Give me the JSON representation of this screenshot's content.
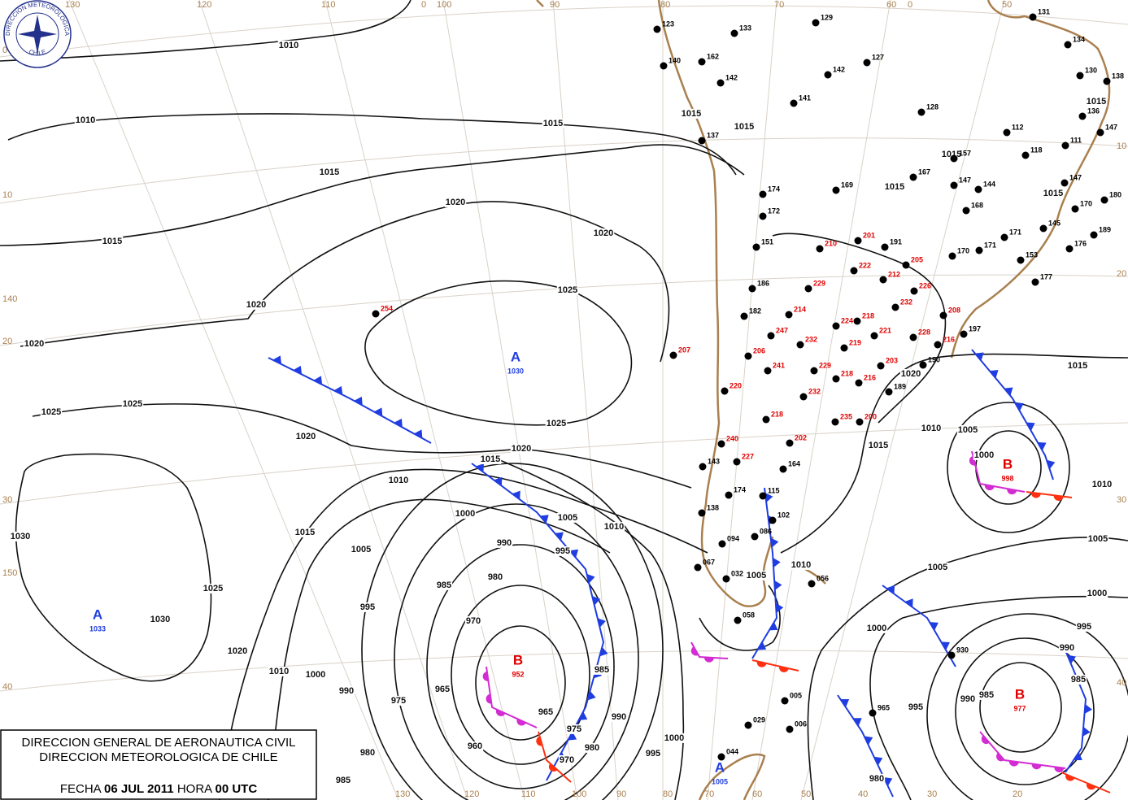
{
  "logo": {
    "top": "DIRECCION METEOROLOGICA",
    "bottom": "CHILE"
  },
  "footer": {
    "line1": "DIRECCION GENERAL DE AERONAUTICA CIVIL",
    "line2": "DIRECCION METEOROLOGICA DE CHILE",
    "date_label": "FECHA",
    "date": "06 JUL 2011",
    "time_label": "HORA",
    "time": "00 UTC"
  },
  "pressure_centers": [
    {
      "letter": "A",
      "value": "1030"
    },
    {
      "letter": "A",
      "value": "1033"
    },
    {
      "letter": "B",
      "value": "952"
    },
    {
      "letter": "B",
      "value": "998"
    },
    {
      "letter": "B",
      "value": "977"
    },
    {
      "letter": "A",
      "value": "1005"
    }
  ],
  "isobar_labels": [
    "1010",
    "1010",
    "1015",
    "1015",
    "1020",
    "1015",
    "1020",
    "1025",
    "1020",
    "1020",
    "1025",
    "1025",
    "1025",
    "1020",
    "1020",
    "1015",
    "1010",
    "1000",
    "1005",
    "1010",
    "1015",
    "1030",
    "990",
    "995",
    "1005",
    "985",
    "980",
    "995",
    "1025",
    "1030",
    "970",
    "1020",
    "1010",
    "1000",
    "990",
    "975",
    "965",
    "985",
    "965",
    "975",
    "990",
    "980",
    "1000",
    "995",
    "980",
    "960",
    "970",
    "985",
    "1015",
    "1010",
    "1005",
    "1000",
    "1010",
    "1015",
    "1005",
    "1005",
    "1000",
    "995",
    "990",
    "985",
    "1000",
    "995",
    "990",
    "985",
    "980",
    "1005",
    "1010",
    "1015",
    "1015",
    "1015",
    "1015",
    "1015",
    "1015",
    "1020"
  ],
  "graticule": {
    "top": [
      "130",
      "120",
      "110",
      "0",
      "100",
      "90",
      "80",
      "70",
      "60",
      "0",
      "50"
    ],
    "bottom": [
      "130",
      "120",
      "110",
      "100",
      "90",
      "80",
      "70",
      "60",
      "50",
      "40",
      "30",
      "20"
    ],
    "left": [
      "0",
      "10",
      "140",
      "20",
      "30",
      "150",
      "40"
    ],
    "right": [
      "10",
      "20",
      "30",
      "40"
    ]
  },
  "stations": [
    {
      "id": "123",
      "color": "#000000"
    },
    {
      "id": "133",
      "color": "#000000"
    },
    {
      "id": "129",
      "color": "#000000"
    },
    {
      "id": "131",
      "color": "#000000"
    },
    {
      "id": "134",
      "color": "#000000"
    },
    {
      "id": "162",
      "color": "#000000"
    },
    {
      "id": "140",
      "color": "#000000"
    },
    {
      "id": "127",
      "color": "#000000"
    },
    {
      "id": "142",
      "color": "#000000"
    },
    {
      "id": "142",
      "color": "#000000"
    },
    {
      "id": "130",
      "color": "#000000"
    },
    {
      "id": "138",
      "color": "#000000"
    },
    {
      "id": "141",
      "color": "#000000"
    },
    {
      "id": "128",
      "color": "#000000"
    },
    {
      "id": "136",
      "color": "#000000"
    },
    {
      "id": "137",
      "color": "#000000"
    },
    {
      "id": "112",
      "color": "#000000"
    },
    {
      "id": "147",
      "color": "#000000"
    },
    {
      "id": "111",
      "color": "#000000"
    },
    {
      "id": "118",
      "color": "#000000"
    },
    {
      "id": "157",
      "color": "#000000"
    },
    {
      "id": "167",
      "color": "#000000"
    },
    {
      "id": "147",
      "color": "#000000"
    },
    {
      "id": "144",
      "color": "#000000"
    },
    {
      "id": "169",
      "color": "#000000"
    },
    {
      "id": "174",
      "color": "#000000"
    },
    {
      "id": "147",
      "color": "#000000"
    },
    {
      "id": "180",
      "color": "#000000"
    },
    {
      "id": "172",
      "color": "#000000"
    },
    {
      "id": "168",
      "color": "#000000"
    },
    {
      "id": "170",
      "color": "#000000"
    },
    {
      "id": "145",
      "color": "#000000"
    },
    {
      "id": "189",
      "color": "#000000"
    },
    {
      "id": "171",
      "color": "#000000"
    },
    {
      "id": "151",
      "color": "#000000"
    },
    {
      "id": "191",
      "color": "#000000"
    },
    {
      "id": "170",
      "color": "#000000"
    },
    {
      "id": "171",
      "color": "#000000"
    },
    {
      "id": "176",
      "color": "#000000"
    },
    {
      "id": "153",
      "color": "#000000"
    },
    {
      "id": "177",
      "color": "#000000"
    },
    {
      "id": "186",
      "color": "#000000"
    },
    {
      "id": "182",
      "color": "#000000"
    },
    {
      "id": "197",
      "color": "#000000"
    },
    {
      "id": "190",
      "color": "#000000"
    },
    {
      "id": "189",
      "color": "#000000"
    },
    {
      "id": "174",
      "color": "#000000"
    },
    {
      "id": "115",
      "color": "#000000"
    },
    {
      "id": "102",
      "color": "#000000"
    },
    {
      "id": "086",
      "color": "#000000"
    },
    {
      "id": "094",
      "color": "#000000"
    },
    {
      "id": "067",
      "color": "#000000"
    },
    {
      "id": "032",
      "color": "#000000"
    },
    {
      "id": "058",
      "color": "#000000"
    },
    {
      "id": "005",
      "color": "#000000"
    },
    {
      "id": "006",
      "color": "#000000"
    },
    {
      "id": "029",
      "color": "#000000"
    },
    {
      "id": "044",
      "color": "#000000"
    },
    {
      "id": "965",
      "color": "#000000"
    },
    {
      "id": "930",
      "color": "#000000"
    },
    {
      "id": "056",
      "color": "#000000"
    },
    {
      "id": "164",
      "color": "#000000"
    },
    {
      "id": "138",
      "color": "#000000"
    },
    {
      "id": "143",
      "color": "#000000"
    },
    {
      "id": "254",
      "color": "#e00000"
    },
    {
      "id": "207",
      "color": "#e00000"
    },
    {
      "id": "201",
      "color": "#e00000"
    },
    {
      "id": "210",
      "color": "#e00000"
    },
    {
      "id": "205",
      "color": "#e00000"
    },
    {
      "id": "222",
      "color": "#e00000"
    },
    {
      "id": "212",
      "color": "#e00000"
    },
    {
      "id": "229",
      "color": "#e00000"
    },
    {
      "id": "226",
      "color": "#e00000"
    },
    {
      "id": "232",
      "color": "#e00000"
    },
    {
      "id": "214",
      "color": "#e00000"
    },
    {
      "id": "208",
      "color": "#e00000"
    },
    {
      "id": "218",
      "color": "#e00000"
    },
    {
      "id": "224",
      "color": "#e00000"
    },
    {
      "id": "221",
      "color": "#e00000"
    },
    {
      "id": "228",
      "color": "#e00000"
    },
    {
      "id": "247",
      "color": "#e00000"
    },
    {
      "id": "232",
      "color": "#e00000"
    },
    {
      "id": "216",
      "color": "#e00000"
    },
    {
      "id": "219",
      "color": "#e00000"
    },
    {
      "id": "206",
      "color": "#e00000"
    },
    {
      "id": "203",
      "color": "#e00000"
    },
    {
      "id": "241",
      "color": "#e00000"
    },
    {
      "id": "229",
      "color": "#e00000"
    },
    {
      "id": "218",
      "color": "#e00000"
    },
    {
      "id": "216",
      "color": "#e00000"
    },
    {
      "id": "220",
      "color": "#e00000"
    },
    {
      "id": "232",
      "color": "#e00000"
    },
    {
      "id": "218",
      "color": "#e00000"
    },
    {
      "id": "202",
      "color": "#e00000"
    },
    {
      "id": "235",
      "color": "#e00000"
    },
    {
      "id": "200",
      "color": "#e00000"
    },
    {
      "id": "240",
      "color": "#e00000"
    },
    {
      "id": "227",
      "color": "#e00000"
    }
  ]
}
